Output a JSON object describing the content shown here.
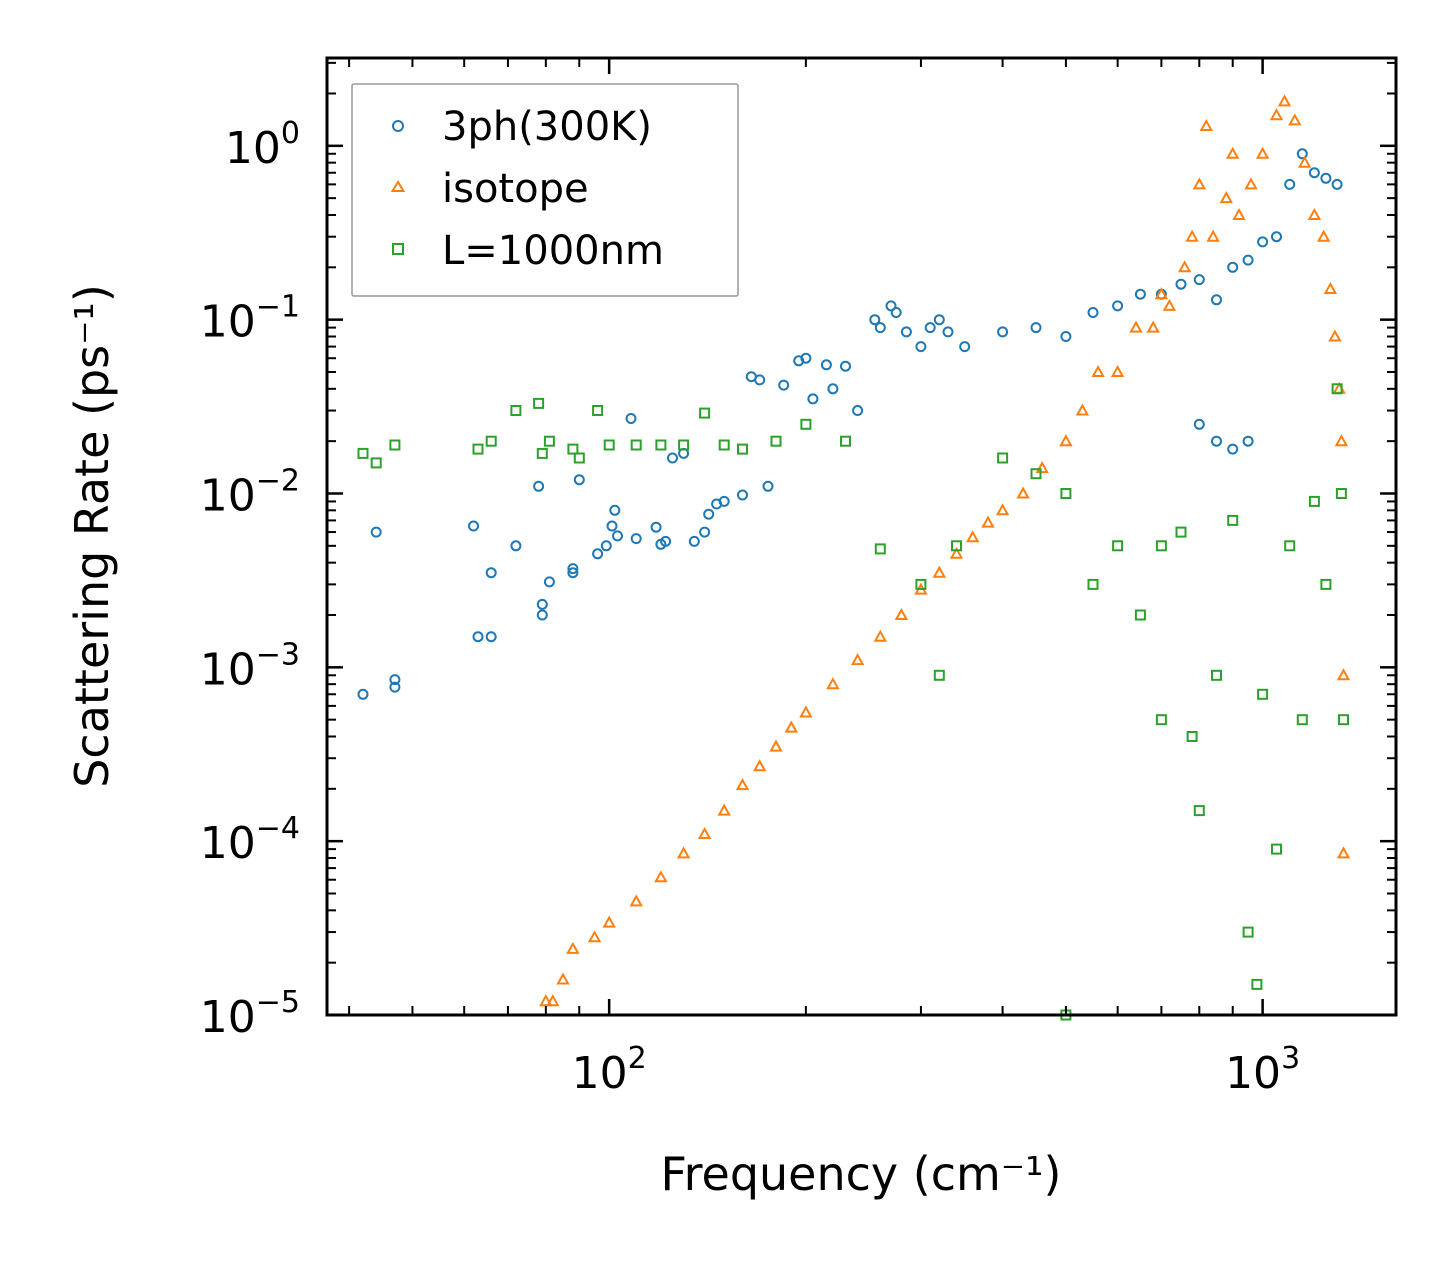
{
  "chart_data": {
    "type": "scatter",
    "title": "",
    "xlabel": "Frequency (cm⁻¹)",
    "ylabel": "Scattering Rate (ps⁻¹)",
    "xscale": "log",
    "yscale": "log",
    "xlim": [
      37,
      1600
    ],
    "ylim": [
      1e-05,
      3.2
    ],
    "x_tick_labels": [
      {
        "value": 100,
        "base": "10",
        "exp": "2"
      },
      {
        "value": 1000,
        "base": "10",
        "exp": "3"
      }
    ],
    "y_tick_labels": [
      {
        "value": 1,
        "base": "10",
        "exp": "0"
      },
      {
        "value": 0.1,
        "base": "10",
        "exp": "−1"
      },
      {
        "value": 0.01,
        "base": "10",
        "exp": "−2"
      },
      {
        "value": 0.001,
        "base": "10",
        "exp": "−3"
      },
      {
        "value": 0.0001,
        "base": "10",
        "exp": "−4"
      },
      {
        "value": 1e-05,
        "base": "10",
        "exp": "−5"
      }
    ],
    "legend_position": "top-left",
    "series": [
      {
        "name": "3ph(300K)",
        "marker": "circle",
        "color": "#1f77b4",
        "points": [
          [
            42,
            0.0007
          ],
          [
            47,
            0.00085
          ],
          [
            47,
            0.00077
          ],
          [
            44,
            0.006
          ],
          [
            63,
            0.0015
          ],
          [
            66,
            0.0015
          ],
          [
            62,
            0.0065
          ],
          [
            66,
            0.0035
          ],
          [
            72,
            0.005
          ],
          [
            78,
            0.011
          ],
          [
            79,
            0.002
          ],
          [
            79,
            0.0023
          ],
          [
            81,
            0.0031
          ],
          [
            88,
            0.0035
          ],
          [
            88,
            0.0037
          ],
          [
            90,
            0.012
          ],
          [
            96,
            0.0045
          ],
          [
            99,
            0.005
          ],
          [
            101,
            0.0065
          ],
          [
            102,
            0.008
          ],
          [
            103,
            0.0057
          ],
          [
            108,
            0.027
          ],
          [
            110,
            0.0055
          ],
          [
            118,
            0.0064
          ],
          [
            120,
            0.0051
          ],
          [
            122,
            0.0053
          ],
          [
            125,
            0.016
          ],
          [
            130,
            0.017
          ],
          [
            135,
            0.0053
          ],
          [
            140,
            0.006
          ],
          [
            142,
            0.0076
          ],
          [
            146,
            0.0087
          ],
          [
            150,
            0.009
          ],
          [
            160,
            0.0098
          ],
          [
            165,
            0.047
          ],
          [
            170,
            0.045
          ],
          [
            175,
            0.011
          ],
          [
            185,
            0.042
          ],
          [
            195,
            0.058
          ],
          [
            200,
            0.06
          ],
          [
            205,
            0.035
          ],
          [
            215,
            0.055
          ],
          [
            220,
            0.04
          ],
          [
            230,
            0.054
          ],
          [
            240,
            0.03
          ],
          [
            255,
            0.1
          ],
          [
            260,
            0.09
          ],
          [
            270,
            0.12
          ],
          [
            275,
            0.11
          ],
          [
            285,
            0.085
          ],
          [
            300,
            0.07
          ],
          [
            310,
            0.09
          ],
          [
            320,
            0.1
          ],
          [
            330,
            0.085
          ],
          [
            350,
            0.07
          ],
          [
            400,
            0.085
          ],
          [
            450,
            0.09
          ],
          [
            500,
            0.08
          ],
          [
            550,
            0.11
          ],
          [
            600,
            0.12
          ],
          [
            650,
            0.14
          ],
          [
            700,
            0.14
          ],
          [
            750,
            0.16
          ],
          [
            800,
            0.17
          ],
          [
            850,
            0.13
          ],
          [
            900,
            0.2
          ],
          [
            950,
            0.22
          ],
          [
            1000,
            0.28
          ],
          [
            1050,
            0.3
          ],
          [
            1100,
            0.6
          ],
          [
            1150,
            0.9
          ],
          [
            1200,
            0.7
          ],
          [
            1250,
            0.65
          ],
          [
            1300,
            0.6
          ],
          [
            800,
            0.025
          ],
          [
            850,
            0.02
          ],
          [
            900,
            0.018
          ],
          [
            950,
            0.02
          ]
        ]
      },
      {
        "name": "isotope",
        "marker": "triangle",
        "color": "#ff7f0e",
        "points": [
          [
            80,
            1.2e-05
          ],
          [
            82,
            1.2e-05
          ],
          [
            85,
            1.6e-05
          ],
          [
            88,
            2.4e-05
          ],
          [
            95,
            2.8e-05
          ],
          [
            100,
            3.4e-05
          ],
          [
            110,
            4.5e-05
          ],
          [
            120,
            6.2e-05
          ],
          [
            130,
            8.5e-05
          ],
          [
            140,
            0.00011
          ],
          [
            150,
            0.00015
          ],
          [
            160,
            0.00021
          ],
          [
            170,
            0.00027
          ],
          [
            180,
            0.00035
          ],
          [
            190,
            0.00045
          ],
          [
            200,
            0.00055
          ],
          [
            220,
            0.0008
          ],
          [
            240,
            0.0011
          ],
          [
            260,
            0.0015
          ],
          [
            280,
            0.002
          ],
          [
            300,
            0.0028
          ],
          [
            320,
            0.0035
          ],
          [
            340,
            0.0045
          ],
          [
            360,
            0.0056
          ],
          [
            380,
            0.0068
          ],
          [
            400,
            0.008
          ],
          [
            430,
            0.01
          ],
          [
            460,
            0.014
          ],
          [
            500,
            0.02
          ],
          [
            530,
            0.03
          ],
          [
            560,
            0.05
          ],
          [
            600,
            0.05
          ],
          [
            640,
            0.09
          ],
          [
            680,
            0.09
          ],
          [
            700,
            0.14
          ],
          [
            720,
            0.12
          ],
          [
            760,
            0.2
          ],
          [
            780,
            0.3
          ],
          [
            800,
            0.6
          ],
          [
            820,
            1.3
          ],
          [
            840,
            0.3
          ],
          [
            880,
            0.5
          ],
          [
            900,
            0.9
          ],
          [
            920,
            0.4
          ],
          [
            960,
            0.6
          ],
          [
            1000,
            0.9
          ],
          [
            1050,
            1.5
          ],
          [
            1080,
            1.8
          ],
          [
            1120,
            1.4
          ],
          [
            1160,
            0.8
          ],
          [
            1200,
            0.4
          ],
          [
            1240,
            0.3
          ],
          [
            1270,
            0.15
          ],
          [
            1290,
            0.08
          ],
          [
            1310,
            0.04
          ],
          [
            1320,
            0.02
          ],
          [
            1330,
            0.0009
          ],
          [
            1330,
            8.5e-05
          ]
        ]
      },
      {
        "name": "L=1000nm",
        "marker": "square",
        "color": "#2ca02c",
        "points": [
          [
            42,
            0.017
          ],
          [
            44,
            0.015
          ],
          [
            47,
            0.019
          ],
          [
            63,
            0.018
          ],
          [
            66,
            0.02
          ],
          [
            72,
            0.03
          ],
          [
            78,
            0.033
          ],
          [
            79,
            0.017
          ],
          [
            81,
            0.02
          ],
          [
            88,
            0.018
          ],
          [
            90,
            0.016
          ],
          [
            96,
            0.03
          ],
          [
            100,
            0.019
          ],
          [
            110,
            0.019
          ],
          [
            120,
            0.019
          ],
          [
            130,
            0.019
          ],
          [
            140,
            0.029
          ],
          [
            150,
            0.019
          ],
          [
            160,
            0.018
          ],
          [
            180,
            0.02
          ],
          [
            200,
            0.025
          ],
          [
            230,
            0.02
          ],
          [
            260,
            0.0048
          ],
          [
            300,
            0.003
          ],
          [
            320,
            0.0009
          ],
          [
            340,
            0.005
          ],
          [
            400,
            0.016
          ],
          [
            450,
            0.013
          ],
          [
            500,
            0.01
          ],
          [
            500,
            1e-05
          ],
          [
            550,
            0.003
          ],
          [
            600,
            0.005
          ],
          [
            650,
            0.002
          ],
          [
            700,
            0.005
          ],
          [
            700,
            0.0005
          ],
          [
            750,
            0.006
          ],
          [
            780,
            0.0004
          ],
          [
            800,
            0.00015
          ],
          [
            850,
            0.0009
          ],
          [
            900,
            0.007
          ],
          [
            950,
            3e-05
          ],
          [
            980,
            1.5e-05
          ],
          [
            1000,
            0.0007
          ],
          [
            1050,
            9e-05
          ],
          [
            1100,
            0.005
          ],
          [
            1150,
            0.0005
          ],
          [
            1200,
            0.009
          ],
          [
            1250,
            0.003
          ],
          [
            1300,
            0.04
          ],
          [
            1320,
            0.01
          ],
          [
            1330,
            0.0005
          ]
        ]
      }
    ]
  }
}
